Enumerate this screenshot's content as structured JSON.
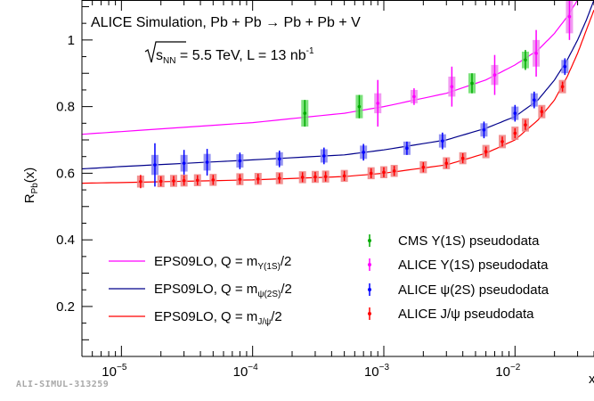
{
  "watermark": "ALI-SIMUL-313259",
  "chart_data": {
    "type": "scatter",
    "title_line1": "ALICE Simulation, Pb + Pb → Pb + Pb + V",
    "title_line2": "√s_NN = 5.5 TeV, L = 13 nb⁻¹",
    "title2_parts": {
      "energy_text": " = 5.5 TeV, L = 13 nb",
      "sup": "-1"
    },
    "ylabel": "R_Pb(x)",
    "xlabel": "x",
    "x_log": true,
    "xlim": [
      5e-06,
      0.04
    ],
    "ylim": [
      0.05,
      1.12
    ],
    "x_ticks": [
      1e-05,
      0.0001,
      0.001,
      0.01
    ],
    "x_tick_labels": [
      "10⁻⁵",
      "10⁻⁴",
      "10⁻³",
      "10⁻²"
    ],
    "y_ticks": [
      0.2,
      0.4,
      0.6,
      0.8,
      1.0
    ],
    "y_tick_labels": [
      "0.2",
      "0.4",
      "0.6",
      "0.8",
      "1"
    ],
    "grid": false,
    "curves": [
      {
        "name": "EPS09LO, Q = m_Υ(1S)/2",
        "color": "#ff00ff",
        "base": 0.71,
        "points": [
          [
            5e-06,
            0.717
          ],
          [
            1e-05,
            0.725
          ],
          [
            0.0001,
            0.752
          ],
          [
            0.0005,
            0.78
          ],
          [
            0.001,
            0.8
          ],
          [
            0.003,
            0.84
          ],
          [
            0.006,
            0.88
          ],
          [
            0.01,
            0.925
          ],
          [
            0.015,
            0.97
          ],
          [
            0.02,
            1.02
          ],
          [
            0.025,
            1.07
          ],
          [
            0.03,
            1.12
          ],
          [
            0.035,
            1.16
          ],
          [
            0.04,
            1.2
          ]
        ]
      },
      {
        "name": "EPS09LO, Q = m_ψ(2S)/2",
        "color": "#00008b",
        "points": [
          [
            5e-06,
            0.613
          ],
          [
            1e-05,
            0.62
          ],
          [
            0.0001,
            0.64
          ],
          [
            0.0005,
            0.655
          ],
          [
            0.001,
            0.67
          ],
          [
            0.003,
            0.7
          ],
          [
            0.006,
            0.735
          ],
          [
            0.01,
            0.77
          ],
          [
            0.015,
            0.82
          ],
          [
            0.02,
            0.88
          ],
          [
            0.025,
            0.94
          ],
          [
            0.03,
            1.0
          ],
          [
            0.035,
            1.06
          ],
          [
            0.04,
            1.12
          ]
        ]
      },
      {
        "name": "EPS09LO, Q = m_J/ψ/2",
        "color": "#ff0000",
        "points": [
          [
            5e-06,
            0.57
          ],
          [
            1e-05,
            0.572
          ],
          [
            0.0001,
            0.58
          ],
          [
            0.0005,
            0.59
          ],
          [
            0.001,
            0.6
          ],
          [
            0.003,
            0.625
          ],
          [
            0.006,
            0.66
          ],
          [
            0.01,
            0.7
          ],
          [
            0.015,
            0.76
          ],
          [
            0.02,
            0.82
          ],
          [
            0.025,
            0.89
          ],
          [
            0.03,
            0.96
          ],
          [
            0.035,
            1.03
          ],
          [
            0.04,
            1.09
          ]
        ]
      }
    ],
    "curve_legend": [
      {
        "pre": "EPS09LO, Q = m",
        "sub": "Υ(1S)",
        "post": "/2",
        "color": "#ff00ff"
      },
      {
        "pre": "EPS09LO, Q = m",
        "sub": "ψ(2S)",
        "post": "/2",
        "color": "#00008b"
      },
      {
        "pre": "EPS09LO, Q = m",
        "sub": "J/ψ",
        "post": "/2",
        "color": "#ff0000"
      }
    ],
    "point_legend": [
      {
        "label": "CMS Υ(1S) pseudodata",
        "color": "#00aa00"
      },
      {
        "label": "ALICE Υ(1S) pseudodata",
        "color": "#ff00ff"
      },
      {
        "label": "ALICE ψ(2S) pseudodata",
        "color": "#0000ff"
      },
      {
        "label": "ALICE J/ψ pseudodata",
        "color": "#ff0000"
      }
    ],
    "series": [
      {
        "name": "CMS Υ(1S) pseudodata",
        "color": "#00aa00",
        "box_color": "#66dd66",
        "points": [
          {
            "x": 0.00025,
            "y": 0.78,
            "err": 0.04,
            "sys": 0.04
          },
          {
            "x": 0.00065,
            "y": 0.8,
            "err": 0.035,
            "sys": 0.035
          },
          {
            "x": 0.0047,
            "y": 0.87,
            "err": 0.03,
            "sys": 0.03
          },
          {
            "x": 0.012,
            "y": 0.94,
            "err": 0.03,
            "sys": 0.025
          }
        ]
      },
      {
        "name": "ALICE Υ(1S) pseudodata",
        "color": "#ff00ff",
        "box_color": "#ee88ee",
        "points": [
          {
            "x": 0.0009,
            "y": 0.81,
            "err": 0.07,
            "sys": 0.03
          },
          {
            "x": 0.0017,
            "y": 0.83,
            "err": 0.025,
            "sys": 0.02
          },
          {
            "x": 0.0033,
            "y": 0.86,
            "err": 0.06,
            "sys": 0.03
          },
          {
            "x": 0.007,
            "y": 0.895,
            "err": 0.06,
            "sys": 0.03
          },
          {
            "x": 0.0145,
            "y": 0.96,
            "err": 0.07,
            "sys": 0.04
          },
          {
            "x": 0.026,
            "y": 1.07,
            "err": 0.07,
            "sys": 0.05
          }
        ]
      },
      {
        "name": "ALICE ψ(2S) pseudodata",
        "color": "#0000ff",
        "box_color": "#8080ee",
        "points": [
          {
            "x": 1.8e-05,
            "y": 0.625,
            "err": 0.065,
            "sys": 0.03
          },
          {
            "x": 3e-05,
            "y": 0.63,
            "err": 0.04,
            "sys": 0.025
          },
          {
            "x": 4.5e-05,
            "y": 0.633,
            "err": 0.04,
            "sys": 0.025
          },
          {
            "x": 8e-05,
            "y": 0.637,
            "err": 0.025,
            "sys": 0.02
          },
          {
            "x": 0.00016,
            "y": 0.643,
            "err": 0.025,
            "sys": 0.02
          },
          {
            "x": 0.00035,
            "y": 0.652,
            "err": 0.025,
            "sys": 0.02
          },
          {
            "x": 0.0007,
            "y": 0.663,
            "err": 0.025,
            "sys": 0.02
          },
          {
            "x": 0.0015,
            "y": 0.675,
            "err": 0.02,
            "sys": 0.02
          },
          {
            "x": 0.0028,
            "y": 0.697,
            "err": 0.025,
            "sys": 0.02
          },
          {
            "x": 0.0058,
            "y": 0.73,
            "err": 0.025,
            "sys": 0.02
          },
          {
            "x": 0.01,
            "y": 0.78,
            "err": 0.025,
            "sys": 0.02
          },
          {
            "x": 0.014,
            "y": 0.82,
            "err": 0.025,
            "sys": 0.02
          },
          {
            "x": 0.024,
            "y": 0.92,
            "err": 0.025,
            "sys": 0.02
          }
        ]
      },
      {
        "name": "ALICE J/ψ pseudodata",
        "color": "#ff0000",
        "box_color": "#f08080",
        "points": [
          {
            "x": 1.4e-05,
            "y": 0.575,
            "err": 0.02,
            "sys": 0.018
          },
          {
            "x": 2e-05,
            "y": 0.576,
            "err": 0.015,
            "sys": 0.018
          },
          {
            "x": 2.5e-05,
            "y": 0.577,
            "err": 0.015,
            "sys": 0.018
          },
          {
            "x": 3e-05,
            "y": 0.578,
            "err": 0.015,
            "sys": 0.018
          },
          {
            "x": 3.8e-05,
            "y": 0.579,
            "err": 0.015,
            "sys": 0.018
          },
          {
            "x": 5e-05,
            "y": 0.58,
            "err": 0.015,
            "sys": 0.018
          },
          {
            "x": 8e-05,
            "y": 0.582,
            "err": 0.015,
            "sys": 0.018
          },
          {
            "x": 0.00011,
            "y": 0.583,
            "err": 0.015,
            "sys": 0.018
          },
          {
            "x": 0.00016,
            "y": 0.585,
            "err": 0.015,
            "sys": 0.018
          },
          {
            "x": 0.00024,
            "y": 0.588,
            "err": 0.015,
            "sys": 0.018
          },
          {
            "x": 0.0003,
            "y": 0.589,
            "err": 0.015,
            "sys": 0.018
          },
          {
            "x": 0.00036,
            "y": 0.59,
            "err": 0.015,
            "sys": 0.018
          },
          {
            "x": 0.0005,
            "y": 0.592,
            "err": 0.015,
            "sys": 0.018
          },
          {
            "x": 0.0008,
            "y": 0.6,
            "err": 0.015,
            "sys": 0.018
          },
          {
            "x": 0.001,
            "y": 0.603,
            "err": 0.015,
            "sys": 0.018
          },
          {
            "x": 0.0012,
            "y": 0.607,
            "err": 0.015,
            "sys": 0.018
          },
          {
            "x": 0.002,
            "y": 0.618,
            "err": 0.015,
            "sys": 0.018
          },
          {
            "x": 0.003,
            "y": 0.63,
            "err": 0.015,
            "sys": 0.018
          },
          {
            "x": 0.004,
            "y": 0.645,
            "err": 0.015,
            "sys": 0.018
          },
          {
            "x": 0.006,
            "y": 0.665,
            "err": 0.015,
            "sys": 0.02
          },
          {
            "x": 0.008,
            "y": 0.695,
            "err": 0.015,
            "sys": 0.02
          },
          {
            "x": 0.01,
            "y": 0.72,
            "err": 0.015,
            "sys": 0.02
          },
          {
            "x": 0.012,
            "y": 0.745,
            "err": 0.015,
            "sys": 0.02
          },
          {
            "x": 0.016,
            "y": 0.785,
            "err": 0.015,
            "sys": 0.02
          },
          {
            "x": 0.023,
            "y": 0.86,
            "err": 0.015,
            "sys": 0.02
          }
        ]
      }
    ]
  }
}
